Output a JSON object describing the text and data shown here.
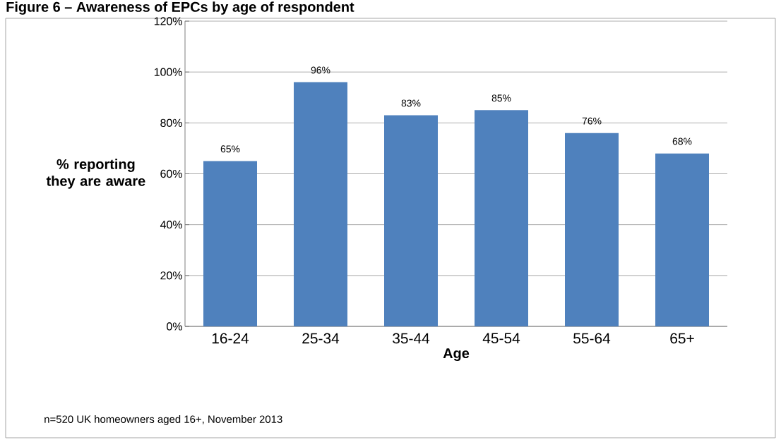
{
  "chart_data": {
    "type": "bar",
    "title": "Figure 6 – Awareness of EPCs by age of respondent",
    "xlabel": "Age",
    "ylabel": "% reporting they are aware",
    "categories": [
      "16-24",
      "25-34",
      "35-44",
      "45-54",
      "55-64",
      "65+"
    ],
    "values": [
      65,
      96,
      83,
      85,
      76,
      68
    ],
    "value_labels": [
      "65%",
      "96%",
      "83%",
      "85%",
      "76%",
      "68%"
    ],
    "color": "#4f81bd",
    "ylim": [
      0,
      120
    ],
    "yticks": [
      {
        "value": 0,
        "label": "0%"
      },
      {
        "value": 20,
        "label": "20%"
      },
      {
        "value": 40,
        "label": "40%"
      },
      {
        "value": 60,
        "label": "60%"
      },
      {
        "value": 80,
        "label": "80%"
      },
      {
        "value": 100,
        "label": "100%"
      },
      {
        "value": 120,
        "label": "120%"
      }
    ],
    "grid": "y",
    "annotations": [
      "n=520 UK homeowners aged 16+, November 2013"
    ]
  }
}
